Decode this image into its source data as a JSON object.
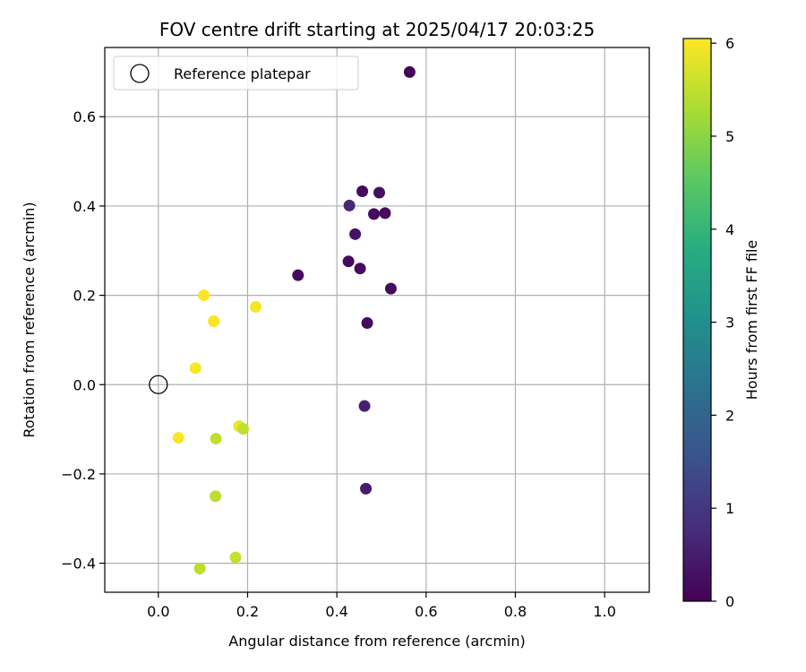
{
  "chart_data": {
    "type": "scatter",
    "title": "FOV centre drift starting at 2025/04/17 20:03:25",
    "xlabel": "Angular distance from reference (arcmin)",
    "ylabel": "Rotation from reference (arcmin)",
    "xlim": [
      -0.12,
      1.1
    ],
    "ylim": [
      -0.465,
      0.755
    ],
    "xticks": [
      0.0,
      0.2,
      0.4,
      0.6,
      0.8,
      1.0
    ],
    "xtick_labels": [
      "0.0",
      "0.2",
      "0.4",
      "0.6",
      "0.8",
      "1.0"
    ],
    "yticks": [
      -0.4,
      -0.2,
      0.0,
      0.2,
      0.4,
      0.6
    ],
    "ytick_labels": [
      "−0.4",
      "−0.2",
      "0.0",
      "0.2",
      "0.4",
      "0.6"
    ],
    "grid": true,
    "legend": {
      "position": "top-left",
      "entries": [
        "Reference platepar"
      ]
    },
    "reference_point": {
      "x": 0.0,
      "y": 0.0
    },
    "colorbar": {
      "label": "Hours from first FF file",
      "range": [
        0,
        6.05
      ],
      "ticks": [
        0,
        1,
        2,
        3,
        4,
        5,
        6
      ],
      "tick_labels": [
        "0",
        "1",
        "2",
        "3",
        "4",
        "5",
        "6"
      ],
      "colormap": "viridis"
    },
    "points": [
      {
        "x": 0.563,
        "y": 0.7,
        "hours": 0.05
      },
      {
        "x": 0.457,
        "y": 0.433,
        "hours": 0.2
      },
      {
        "x": 0.495,
        "y": 0.43,
        "hours": 0.25
      },
      {
        "x": 0.428,
        "y": 0.401,
        "hours": 0.7
      },
      {
        "x": 0.483,
        "y": 0.382,
        "hours": 0.15
      },
      {
        "x": 0.508,
        "y": 0.384,
        "hours": 0.2
      },
      {
        "x": 0.441,
        "y": 0.337,
        "hours": 0.3
      },
      {
        "x": 0.426,
        "y": 0.276,
        "hours": 0.15
      },
      {
        "x": 0.452,
        "y": 0.26,
        "hours": 0.2
      },
      {
        "x": 0.313,
        "y": 0.245,
        "hours": 0.15
      },
      {
        "x": 0.521,
        "y": 0.215,
        "hours": 0.2
      },
      {
        "x": 0.468,
        "y": 0.138,
        "hours": 0.2
      },
      {
        "x": 0.462,
        "y": -0.048,
        "hours": 0.55
      },
      {
        "x": 0.465,
        "y": -0.233,
        "hours": 0.5
      },
      {
        "x": 0.102,
        "y": 0.2,
        "hours": 6.0
      },
      {
        "x": 0.218,
        "y": 0.174,
        "hours": 5.95
      },
      {
        "x": 0.124,
        "y": 0.142,
        "hours": 6.0
      },
      {
        "x": 0.083,
        "y": 0.037,
        "hours": 6.0
      },
      {
        "x": 0.045,
        "y": -0.119,
        "hours": 6.0
      },
      {
        "x": 0.181,
        "y": -0.093,
        "hours": 5.9
      },
      {
        "x": 0.19,
        "y": -0.099,
        "hours": 5.5
      },
      {
        "x": 0.129,
        "y": -0.121,
        "hours": 5.5
      },
      {
        "x": 0.128,
        "y": -0.25,
        "hours": 5.45
      },
      {
        "x": 0.173,
        "y": -0.387,
        "hours": 5.55
      },
      {
        "x": 0.093,
        "y": -0.412,
        "hours": 5.45
      }
    ]
  },
  "colors": {
    "grid": "#b0b0b0",
    "axes": "#000000",
    "legend_border": "#cccccc"
  }
}
